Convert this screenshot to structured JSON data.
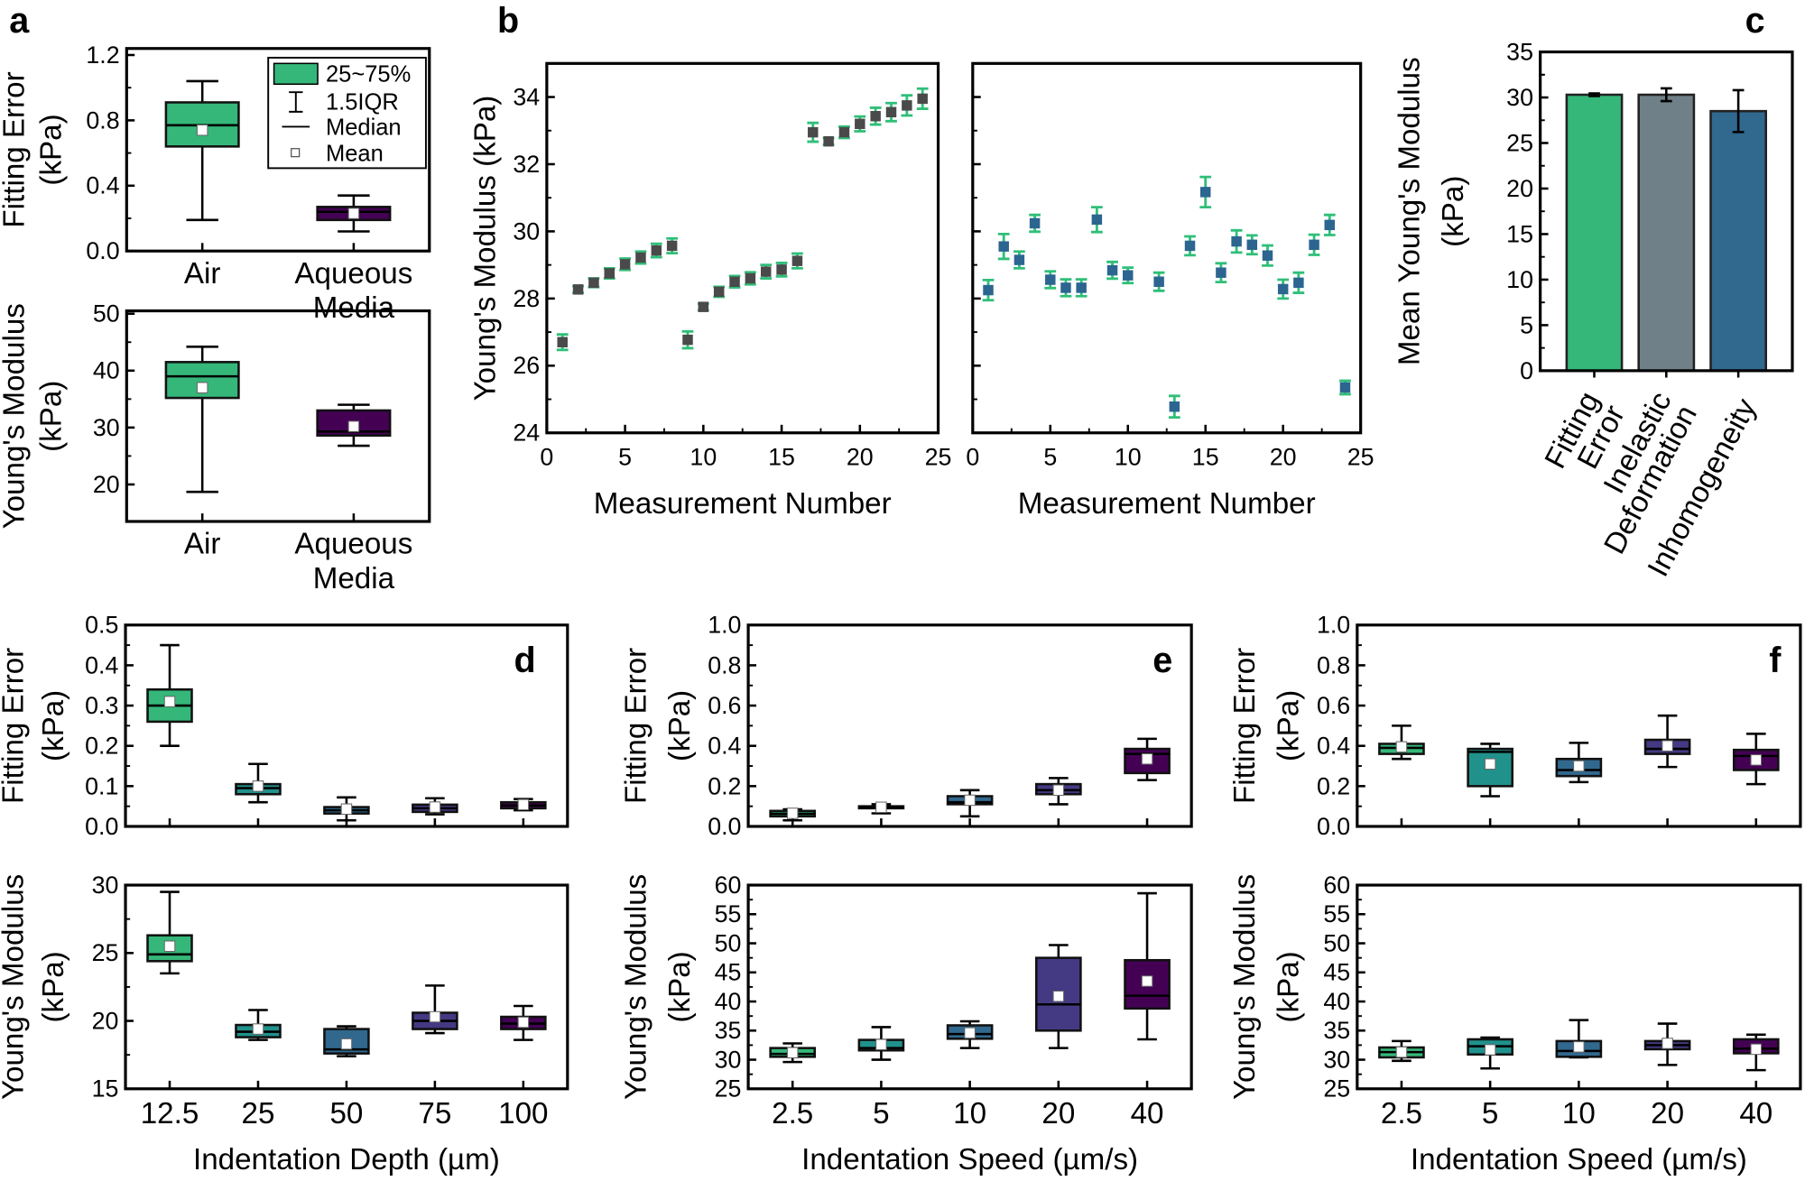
{
  "panel_labels": {
    "a": "a",
    "b": "b",
    "c": "c",
    "d": "d",
    "e": "e",
    "f": "f"
  },
  "legend": {
    "entries": [
      "25~75%",
      "1.5IQR",
      "Median",
      "Mean"
    ],
    "box_color": "#35b779"
  },
  "colors": {
    "green": "#35b779",
    "teal": "#21918c",
    "blue": "#31688e",
    "purple": "#443983",
    "dark_purple": "#440154",
    "gray": "#6f8088",
    "marker_dark": "#4a4a4a",
    "marker_blue": "#2c6590",
    "errorbar_green": "#2fbf78"
  },
  "chart_data": [
    {
      "type": "box",
      "panel": "a",
      "categories": [
        [
          "Air"
        ],
        [
          "Aqueous",
          "Media"
        ]
      ],
      "ylabel": [
        "Fitting Error",
        "(kPa)"
      ],
      "ylim": [
        0,
        1.24
      ],
      "ytick_labels": [
        "0.0",
        "0.4",
        "0.8",
        "1.2"
      ],
      "boxes": [
        {
          "whisker_low": 0.19,
          "q1": 0.64,
          "median": 0.77,
          "q3": 0.91,
          "whisker_high": 1.04,
          "mean": 0.74,
          "color": "#35b779"
        },
        {
          "whisker_low": 0.12,
          "q1": 0.19,
          "median": 0.24,
          "q3": 0.27,
          "whisker_high": 0.34,
          "mean": 0.23,
          "color": "#440154"
        }
      ]
    },
    {
      "type": "box",
      "panel": "a",
      "categories": [
        [
          "Air"
        ],
        [
          "Aqueous",
          "Media"
        ]
      ],
      "ylabel": [
        "Young's Modulus",
        "(kPa)"
      ],
      "ylim": [
        13.5,
        50.5
      ],
      "ytick_labels": [
        "20",
        "30",
        "40",
        "50"
      ],
      "boxes": [
        {
          "whisker_low": 18.7,
          "q1": 35.2,
          "median": 39.0,
          "q3": 41.5,
          "whisker_high": 44.2,
          "mean": 37.0,
          "color": "#35b779"
        },
        {
          "whisker_low": 26.8,
          "q1": 28.6,
          "median": 29.3,
          "q3": 33.0,
          "whisker_high": 34.0,
          "mean": 30.2,
          "color": "#440154"
        }
      ]
    },
    {
      "type": "scatter",
      "panel": "b",
      "xlabel": "Measurement Number",
      "ylabel": [
        "Young's Modulus (kPa)"
      ],
      "xlim": [
        0,
        25
      ],
      "ylim": [
        24,
        35
      ],
      "xtick_labels": [
        "0",
        "5",
        "10",
        "15",
        "20",
        "25"
      ],
      "ytick_labels": [
        "24",
        "26",
        "28",
        "30",
        "32",
        "34"
      ],
      "marker_color": "#4a4a4a",
      "errorbar_color": "#2fbf78",
      "x": [
        1,
        2,
        3,
        4,
        5,
        6,
        7,
        8,
        9,
        10,
        11,
        12,
        13,
        14,
        15,
        16,
        17,
        18,
        19,
        20,
        21,
        22,
        23,
        24
      ],
      "y": [
        26.7,
        28.27,
        28.47,
        28.75,
        29.02,
        29.22,
        29.43,
        29.57,
        26.77,
        27.75,
        28.2,
        28.5,
        28.6,
        28.8,
        28.86,
        29.12,
        32.95,
        32.68,
        32.95,
        33.2,
        33.43,
        33.55,
        33.75,
        33.95
      ],
      "err": [
        0.23,
        0.1,
        0.13,
        0.15,
        0.17,
        0.18,
        0.2,
        0.22,
        0.25,
        0.1,
        0.15,
        0.17,
        0.18,
        0.2,
        0.2,
        0.22,
        0.28,
        0.1,
        0.17,
        0.22,
        0.25,
        0.27,
        0.3,
        0.3
      ]
    },
    {
      "type": "scatter",
      "panel": "b",
      "xlabel": "Measurement Number",
      "xlim": [
        0,
        25
      ],
      "ylim": [
        24,
        35
      ],
      "xtick_labels": [
        "0",
        "5",
        "10",
        "15",
        "20",
        "25"
      ],
      "ytick_labels": [],
      "ytick_values": [
        24,
        26,
        28,
        30,
        32,
        34
      ],
      "marker_color": "#2c6590",
      "errorbar_color": "#2fbf78",
      "x": [
        1,
        2,
        3,
        4,
        5,
        6,
        7,
        8,
        9,
        10,
        12,
        13,
        14,
        15,
        16,
        17,
        18,
        19,
        20,
        21,
        22,
        23,
        24
      ],
      "y": [
        28.25,
        29.55,
        29.15,
        30.24,
        28.56,
        28.32,
        28.32,
        30.35,
        28.84,
        28.69,
        28.5,
        24.78,
        29.57,
        31.17,
        28.77,
        29.7,
        29.6,
        29.28,
        28.28,
        28.47,
        29.6,
        30.19,
        25.35
      ],
      "err": [
        0.3,
        0.37,
        0.25,
        0.25,
        0.25,
        0.25,
        0.25,
        0.37,
        0.25,
        0.23,
        0.27,
        0.32,
        0.28,
        0.45,
        0.28,
        0.33,
        0.28,
        0.3,
        0.28,
        0.3,
        0.3,
        0.3,
        0.2
      ]
    },
    {
      "type": "bar",
      "panel": "c",
      "categories": [
        [
          "Fitting",
          "Error"
        ],
        [
          "Inelastic",
          "Deformation"
        ],
        [
          "Inhomogeneity"
        ]
      ],
      "ylabel": [
        "Mean Young's Modulus",
        "(kPa)"
      ],
      "ylim": [
        0,
        35
      ],
      "ytick_labels": [
        "0",
        "5",
        "10",
        "15",
        "20",
        "25",
        "30",
        "35"
      ],
      "values": [
        30.3,
        30.3,
        28.5
      ],
      "errors": [
        0.15,
        0.7,
        2.3
      ],
      "colors": [
        "#35b779",
        "#6f8088",
        "#31688e"
      ]
    },
    {
      "type": "box",
      "panel": "d",
      "categories": [
        [
          "12.5"
        ],
        [
          "25"
        ],
        [
          "50"
        ],
        [
          "75"
        ],
        [
          "100"
        ]
      ],
      "show_xticklabels": false,
      "ylabel": [
        "Fitting Error",
        "(kPa)"
      ],
      "ylim": [
        0,
        0.5
      ],
      "ytick_labels": [
        "0.0",
        "0.1",
        "0.2",
        "0.3",
        "0.4",
        "0.5"
      ],
      "boxes": [
        {
          "whisker_low": 0.2,
          "q1": 0.26,
          "median": 0.3,
          "q3": 0.34,
          "whisker_high": 0.45,
          "mean": 0.31,
          "color": "#35b779"
        },
        {
          "whisker_low": 0.06,
          "q1": 0.08,
          "median": 0.095,
          "q3": 0.105,
          "whisker_high": 0.155,
          "mean": 0.1,
          "color": "#21918c"
        },
        {
          "whisker_low": 0.015,
          "q1": 0.032,
          "median": 0.04,
          "q3": 0.048,
          "whisker_high": 0.072,
          "mean": 0.043,
          "color": "#31688e"
        },
        {
          "whisker_low": 0.03,
          "q1": 0.036,
          "median": 0.045,
          "q3": 0.054,
          "whisker_high": 0.07,
          "mean": 0.048,
          "color": "#443983"
        },
        {
          "whisker_low": 0.04,
          "q1": 0.045,
          "median": 0.052,
          "q3": 0.06,
          "whisker_high": 0.068,
          "mean": 0.054,
          "color": "#440154"
        }
      ]
    },
    {
      "type": "box",
      "panel": "d",
      "categories": [
        [
          "12.5"
        ],
        [
          "25"
        ],
        [
          "50"
        ],
        [
          "75"
        ],
        [
          "100"
        ]
      ],
      "xlabel": "Indentation Depth (µm)",
      "ylabel": [
        "Young's Modulus",
        "(kPa)"
      ],
      "ylim": [
        15,
        30
      ],
      "ytick_labels": [
        "15",
        "20",
        "25",
        "30"
      ],
      "boxes": [
        {
          "whisker_low": 23.5,
          "q1": 24.4,
          "median": 24.9,
          "q3": 26.3,
          "whisker_high": 29.5,
          "mean": 25.5,
          "color": "#35b779"
        },
        {
          "whisker_low": 18.6,
          "q1": 18.8,
          "median": 19.2,
          "q3": 19.7,
          "whisker_high": 20.8,
          "mean": 19.4,
          "color": "#21918c"
        },
        {
          "whisker_low": 17.4,
          "q1": 17.6,
          "median": 17.9,
          "q3": 19.4,
          "whisker_high": 19.6,
          "mean": 18.3,
          "color": "#31688e"
        },
        {
          "whisker_low": 19.1,
          "q1": 19.4,
          "median": 20.0,
          "q3": 20.6,
          "whisker_high": 22.6,
          "mean": 20.3,
          "color": "#443983"
        },
        {
          "whisker_low": 18.6,
          "q1": 19.4,
          "median": 19.8,
          "q3": 20.3,
          "whisker_high": 21.1,
          "mean": 19.9,
          "color": "#440154"
        }
      ]
    },
    {
      "type": "box",
      "panel": "e",
      "categories": [
        [
          "2.5"
        ],
        [
          "5"
        ],
        [
          "10"
        ],
        [
          "20"
        ],
        [
          "40"
        ]
      ],
      "show_xticklabels": false,
      "ylabel": [
        "Fitting Error",
        "(kPa)"
      ],
      "ylim": [
        0,
        1.0
      ],
      "ytick_labels": [
        "0.0",
        "0.2",
        "0.4",
        "0.6",
        "0.8",
        "1.0"
      ],
      "boxes": [
        {
          "whisker_low": 0.03,
          "q1": 0.05,
          "median": 0.063,
          "q3": 0.077,
          "whisker_high": 0.085,
          "mean": 0.065,
          "color": "#35b779"
        },
        {
          "whisker_low": 0.065,
          "q1": 0.09,
          "median": 0.095,
          "q3": 0.1,
          "whisker_high": 0.11,
          "mean": 0.095,
          "color": "#21918c"
        },
        {
          "whisker_low": 0.05,
          "q1": 0.11,
          "median": 0.12,
          "q3": 0.15,
          "whisker_high": 0.18,
          "mean": 0.13,
          "color": "#31688e"
        },
        {
          "whisker_low": 0.11,
          "q1": 0.16,
          "median": 0.18,
          "q3": 0.21,
          "whisker_high": 0.24,
          "mean": 0.18,
          "color": "#443983"
        },
        {
          "whisker_low": 0.23,
          "q1": 0.265,
          "median": 0.36,
          "q3": 0.385,
          "whisker_high": 0.435,
          "mean": 0.335,
          "color": "#440154"
        }
      ]
    },
    {
      "type": "box",
      "panel": "e",
      "categories": [
        [
          "2.5"
        ],
        [
          "5"
        ],
        [
          "10"
        ],
        [
          "20"
        ],
        [
          "40"
        ]
      ],
      "xlabel": "Indentation Speed (µm/s)",
      "ylabel": [
        "Young's Modulus",
        "(kPa)"
      ],
      "ylim": [
        25,
        60
      ],
      "ytick_labels": [
        "25",
        "30",
        "35",
        "40",
        "45",
        "50",
        "55",
        "60"
      ],
      "boxes": [
        {
          "whisker_low": 29.6,
          "q1": 30.5,
          "median": 31.0,
          "q3": 32.0,
          "whisker_high": 32.8,
          "mean": 31.2,
          "color": "#35b779"
        },
        {
          "whisker_low": 30.0,
          "q1": 31.6,
          "median": 32.0,
          "q3": 33.4,
          "whisker_high": 35.6,
          "mean": 32.6,
          "color": "#21918c"
        },
        {
          "whisker_low": 32.0,
          "q1": 33.6,
          "median": 34.4,
          "q3": 35.9,
          "whisker_high": 36.6,
          "mean": 34.6,
          "color": "#31688e"
        },
        {
          "whisker_low": 32.0,
          "q1": 35.0,
          "median": 39.5,
          "q3": 47.5,
          "whisker_high": 49.7,
          "mean": 40.9,
          "color": "#443983"
        },
        {
          "whisker_low": 33.5,
          "q1": 38.8,
          "median": 41.0,
          "q3": 47.1,
          "whisker_high": 58.6,
          "mean": 43.5,
          "color": "#440154"
        }
      ]
    },
    {
      "type": "box",
      "panel": "f",
      "categories": [
        [
          "2.5"
        ],
        [
          "5"
        ],
        [
          "10"
        ],
        [
          "20"
        ],
        [
          "40"
        ]
      ],
      "show_xticklabels": false,
      "ylabel": [
        "Fitting Error",
        "(kPa)"
      ],
      "ylim": [
        0,
        1.0
      ],
      "ytick_labels": [
        "0.0",
        "0.2",
        "0.4",
        "0.6",
        "0.8",
        "1.0"
      ],
      "boxes": [
        {
          "whisker_low": 0.335,
          "q1": 0.36,
          "median": 0.39,
          "q3": 0.41,
          "whisker_high": 0.5,
          "mean": 0.395,
          "color": "#35b779"
        },
        {
          "whisker_low": 0.15,
          "q1": 0.2,
          "median": 0.37,
          "q3": 0.385,
          "whisker_high": 0.41,
          "mean": 0.31,
          "color": "#21918c"
        },
        {
          "whisker_low": 0.22,
          "q1": 0.25,
          "median": 0.28,
          "q3": 0.335,
          "whisker_high": 0.415,
          "mean": 0.3,
          "color": "#31688e"
        },
        {
          "whisker_low": 0.295,
          "q1": 0.36,
          "median": 0.385,
          "q3": 0.43,
          "whisker_high": 0.55,
          "mean": 0.4,
          "color": "#443983"
        },
        {
          "whisker_low": 0.21,
          "q1": 0.28,
          "median": 0.35,
          "q3": 0.38,
          "whisker_high": 0.46,
          "mean": 0.33,
          "color": "#440154"
        }
      ]
    },
    {
      "type": "box",
      "panel": "f",
      "categories": [
        [
          "2.5"
        ],
        [
          "5"
        ],
        [
          "10"
        ],
        [
          "20"
        ],
        [
          "40"
        ]
      ],
      "xlabel": "Indentation Speed (µm/s)",
      "ylabel": [
        "Young's Modulus",
        "(kPa)"
      ],
      "ylim": [
        25,
        60
      ],
      "ytick_labels": [
        "25",
        "30",
        "35",
        "40",
        "45",
        "50",
        "55",
        "60"
      ],
      "boxes": [
        {
          "whisker_low": 29.8,
          "q1": 30.4,
          "median": 31.3,
          "q3": 32.1,
          "whisker_high": 33.2,
          "mean": 31.3,
          "color": "#35b779"
        },
        {
          "whisker_low": 28.5,
          "q1": 30.9,
          "median": 32.3,
          "q3": 33.5,
          "whisker_high": 33.8,
          "mean": 31.7,
          "color": "#21918c"
        },
        {
          "whisker_low": 30.4,
          "q1": 30.5,
          "median": 31.5,
          "q3": 33.2,
          "whisker_high": 36.8,
          "mean": 32.2,
          "color": "#31688e"
        },
        {
          "whisker_low": 29.1,
          "q1": 31.8,
          "median": 32.5,
          "q3": 33.2,
          "whisker_high": 36.2,
          "mean": 32.8,
          "color": "#443983"
        },
        {
          "whisker_low": 28.2,
          "q1": 31.1,
          "median": 31.9,
          "q3": 33.5,
          "whisker_high": 34.3,
          "mean": 31.8,
          "color": "#440154"
        }
      ]
    }
  ]
}
